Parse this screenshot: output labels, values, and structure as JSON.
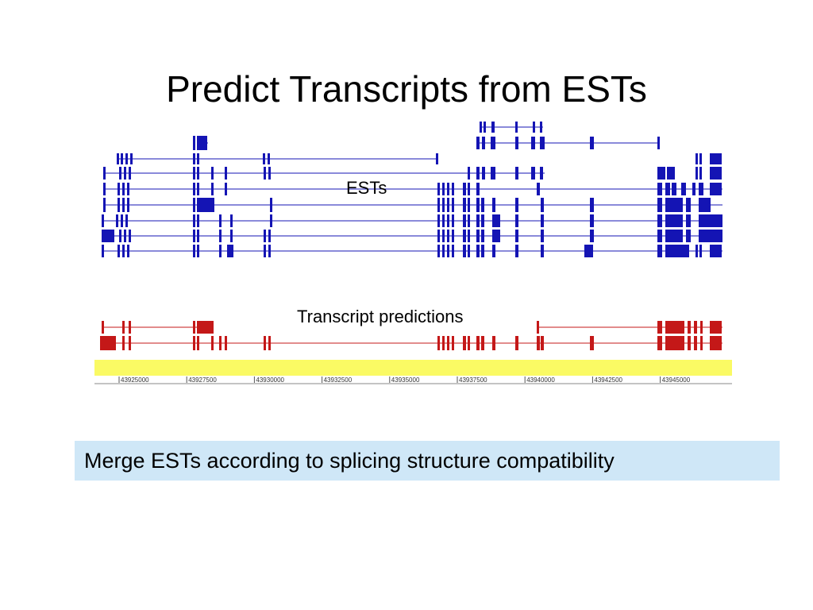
{
  "title": "Predict Transcripts from ESTs",
  "labels": {
    "ests": "ESTs",
    "predictions": "Transcript predictions"
  },
  "caption": "Merge ESTs according to splicing structure compatibility",
  "colors": {
    "est": "#1414b4",
    "prediction": "#c41818",
    "ruler_band": "#fafa64",
    "caption_bg": "#cfe7f7"
  },
  "ruler": {
    "ticks": [
      "43925000",
      "43927500",
      "43930000",
      "43932500",
      "43935000",
      "43937500",
      "43940000",
      "43942500",
      "43945000"
    ]
  }
}
